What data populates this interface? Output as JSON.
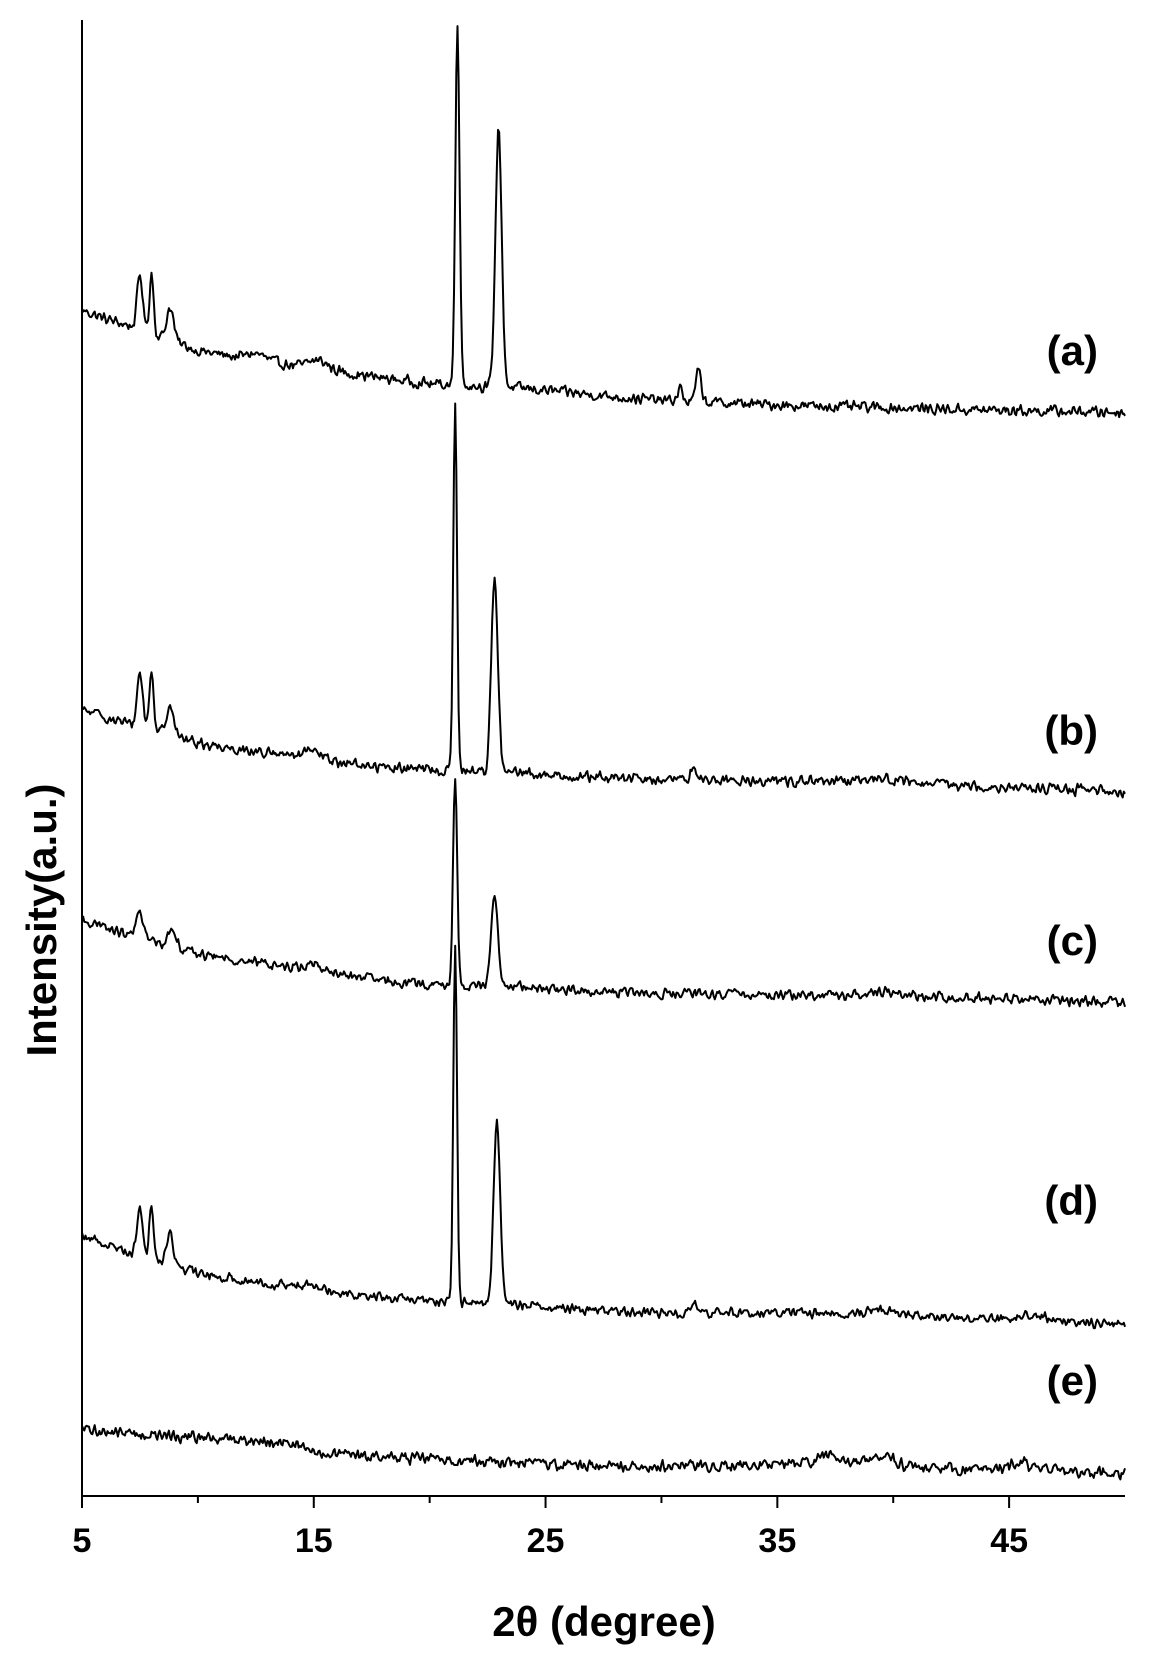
{
  "chart_data": {
    "type": "line",
    "title": "",
    "xlabel": "2θ (degree)",
    "ylabel": "Intensity(a.u.)",
    "xlim": [
      5,
      50
    ],
    "xticks": [
      5,
      15,
      25,
      35,
      45
    ],
    "y_ticks_shown": false,
    "grid": false,
    "legend": "none (series labelled at right end of each trace)",
    "series": [
      {
        "name": "(a)",
        "baseline": {
          "x": [
            5,
            6,
            7,
            8,
            9,
            10,
            12,
            14,
            16,
            18,
            20,
            22,
            24,
            26,
            28,
            30,
            32,
            36,
            40,
            44,
            50
          ],
          "y": [
            1.0,
            0.92,
            0.86,
            0.78,
            0.71,
            0.63,
            0.56,
            0.5,
            0.44,
            0.38,
            0.33,
            0.31,
            0.29,
            0.25,
            0.21,
            0.18,
            0.16,
            0.13,
            0.11,
            0.09,
            0.07
          ]
        },
        "noise": 0.06,
        "peaks": [
          {
            "x": 7.5,
            "h": 0.5,
            "w": 0.12
          },
          {
            "x": 8.0,
            "h": 0.55,
            "w": 0.09
          },
          {
            "x": 8.8,
            "h": 0.3,
            "w": 0.15
          },
          {
            "x": 12.5,
            "h": 0.06,
            "w": 0.4
          },
          {
            "x": 15.2,
            "h": 0.08,
            "w": 0.4
          },
          {
            "x": 21.2,
            "h": 3.3,
            "w": 0.09
          },
          {
            "x": 22.9,
            "h": 0.7,
            "w": 0.12
          },
          {
            "x": 23.0,
            "h": 1.8,
            "w": 0.13
          },
          {
            "x": 30.8,
            "h": 0.12,
            "w": 0.1
          },
          {
            "x": 31.6,
            "h": 0.28,
            "w": 0.12
          }
        ]
      },
      {
        "name": "(b)",
        "baseline": {
          "x": [
            5,
            6,
            7,
            8,
            9,
            10,
            12,
            14,
            16,
            18,
            20,
            22,
            24,
            26,
            28,
            30,
            32,
            36,
            40,
            44,
            50
          ],
          "y": [
            0.9,
            0.83,
            0.76,
            0.7,
            0.64,
            0.57,
            0.5,
            0.44,
            0.38,
            0.33,
            0.3,
            0.29,
            0.27,
            0.24,
            0.22,
            0.2,
            0.2,
            0.19,
            0.17,
            0.14,
            0.08
          ]
        },
        "noise": 0.065,
        "peaks": [
          {
            "x": 7.5,
            "h": 0.55,
            "w": 0.12
          },
          {
            "x": 8.0,
            "h": 0.6,
            "w": 0.09
          },
          {
            "x": 8.8,
            "h": 0.32,
            "w": 0.15
          },
          {
            "x": 15.0,
            "h": 0.07,
            "w": 0.4
          },
          {
            "x": 21.1,
            "h": 3.65,
            "w": 0.08
          },
          {
            "x": 22.8,
            "h": 1.95,
            "w": 0.14
          },
          {
            "x": 31.4,
            "h": 0.12,
            "w": 0.15
          },
          {
            "x": 39.5,
            "h": 0.05,
            "w": 0.6
          }
        ]
      },
      {
        "name": "(c)",
        "baseline": {
          "x": [
            5,
            6,
            7,
            8,
            9,
            10,
            12,
            14,
            16,
            18,
            20,
            22,
            24,
            26,
            28,
            30,
            32,
            36,
            40,
            44,
            50
          ],
          "y": [
            0.88,
            0.8,
            0.73,
            0.67,
            0.61,
            0.54,
            0.47,
            0.41,
            0.34,
            0.27,
            0.23,
            0.22,
            0.21,
            0.18,
            0.16,
            0.14,
            0.14,
            0.13,
            0.12,
            0.1,
            0.06
          ]
        },
        "noise": 0.06,
        "peaks": [
          {
            "x": 7.5,
            "h": 0.28,
            "w": 0.14
          },
          {
            "x": 8.9,
            "h": 0.18,
            "w": 0.18
          },
          {
            "x": 15.0,
            "h": 0.06,
            "w": 0.4
          },
          {
            "x": 21.1,
            "h": 2.05,
            "w": 0.09
          },
          {
            "x": 22.8,
            "h": 0.95,
            "w": 0.14
          },
          {
            "x": 39.5,
            "h": 0.05,
            "w": 0.6
          }
        ]
      },
      {
        "name": "(d)",
        "baseline": {
          "x": [
            5,
            6,
            7,
            8,
            9,
            10,
            12,
            14,
            16,
            18,
            20,
            22,
            24,
            26,
            28,
            30,
            32,
            36,
            40,
            44,
            50
          ],
          "y": [
            1.05,
            0.96,
            0.87,
            0.79,
            0.71,
            0.63,
            0.55,
            0.49,
            0.42,
            0.36,
            0.32,
            0.3,
            0.28,
            0.24,
            0.21,
            0.19,
            0.19,
            0.19,
            0.17,
            0.13,
            0.07
          ]
        },
        "noise": 0.065,
        "peaks": [
          {
            "x": 7.5,
            "h": 0.55,
            "w": 0.12
          },
          {
            "x": 8.0,
            "h": 0.6,
            "w": 0.09
          },
          {
            "x": 8.8,
            "h": 0.33,
            "w": 0.15
          },
          {
            "x": 15.0,
            "h": 0.07,
            "w": 0.4
          },
          {
            "x": 21.1,
            "h": 3.95,
            "w": 0.08
          },
          {
            "x": 22.9,
            "h": 2.05,
            "w": 0.14
          },
          {
            "x": 31.4,
            "h": 0.1,
            "w": 0.15
          },
          {
            "x": 39.5,
            "h": 0.06,
            "w": 0.6
          },
          {
            "x": 46.0,
            "h": 0.05,
            "w": 0.6
          }
        ]
      },
      {
        "name": "(e)",
        "baseline": {
          "x": [
            5,
            8,
            11,
            14,
            15,
            18,
            22,
            26,
            30,
            34,
            38,
            42,
            46,
            50
          ],
          "y": [
            0.55,
            0.5,
            0.46,
            0.43,
            0.32,
            0.28,
            0.24,
            0.2,
            0.19,
            0.2,
            0.23,
            0.16,
            0.16,
            0.1
          ]
        },
        "noise": 0.07,
        "peaks": [
          {
            "x": 37.2,
            "h": 0.08,
            "w": 0.3
          },
          {
            "x": 39.5,
            "h": 0.1,
            "w": 0.45
          },
          {
            "x": 45.5,
            "h": 0.07,
            "w": 0.3
          }
        ]
      }
    ]
  }
}
